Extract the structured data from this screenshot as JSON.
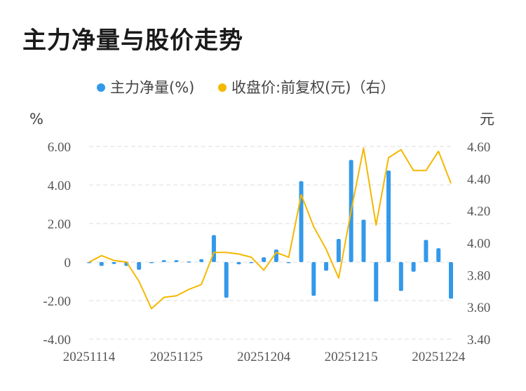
{
  "title": "主力净量与股价走势",
  "legend": {
    "bar_label": "主力净量(%)",
    "line_label": "收盘价:前复权(元)（右）"
  },
  "colors": {
    "bar": "#3399ea",
    "line": "#f5b800",
    "grid": "#e3e3e3"
  },
  "chart_data": {
    "type": "bar",
    "left_unit": "%",
    "right_unit": "元",
    "ylim_left": [
      -4,
      6
    ],
    "yticks_left": [
      "6.00",
      "4.00",
      "2.00",
      "0",
      "-2.00",
      "-4.00"
    ],
    "ylim_right": [
      3.4,
      4.6
    ],
    "yticks_right": [
      "4.60",
      "4.40",
      "4.20",
      "4.00",
      "3.80",
      "3.60",
      "3.40"
    ],
    "x_tick_labels": [
      "20251114",
      "20251125",
      "20251204",
      "20251215",
      "20251224"
    ],
    "x_tick_indices": [
      0,
      7,
      14,
      21,
      28
    ],
    "grid": true,
    "legend_position": "top",
    "series": [
      {
        "name": "主力净量(%)",
        "type": "bar",
        "axis": "left",
        "values": [
          -0.05,
          -0.2,
          -0.1,
          -0.2,
          -0.4,
          -0.05,
          0.1,
          0.1,
          0.03,
          0.15,
          1.4,
          -1.85,
          -0.12,
          -0.03,
          0.25,
          0.65,
          -0.05,
          4.2,
          -1.75,
          -0.45,
          1.2,
          5.3,
          2.2,
          -2.05,
          4.75,
          -1.5,
          -0.5,
          1.15,
          0.72,
          -1.9
        ]
      },
      {
        "name": "收盘价:前复权(元)（右）",
        "type": "line",
        "axis": "right",
        "values": [
          3.88,
          3.92,
          3.89,
          3.88,
          3.76,
          3.59,
          3.66,
          3.67,
          3.71,
          3.74,
          3.94,
          3.94,
          3.93,
          3.91,
          3.83,
          3.94,
          3.91,
          4.3,
          4.1,
          3.96,
          3.78,
          4.2,
          4.59,
          4.11,
          4.53,
          4.58,
          4.45,
          4.45,
          4.57,
          4.37
        ]
      }
    ]
  }
}
